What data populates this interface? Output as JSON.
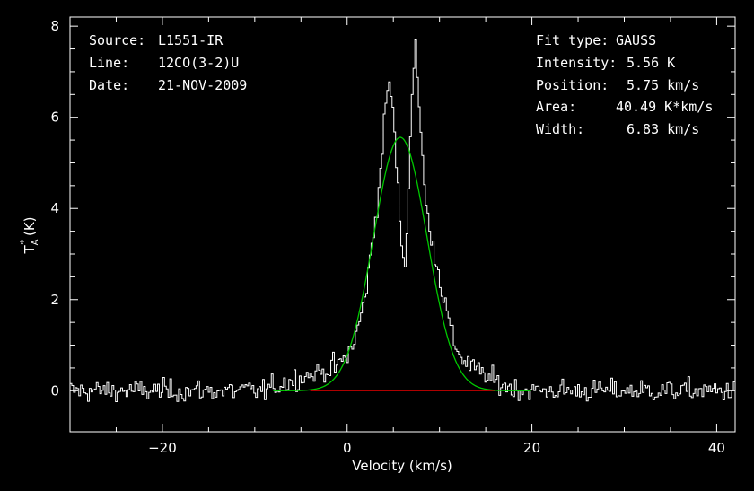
{
  "colors": {
    "background": "#000000",
    "axes": "#ffffff",
    "spectrum": "#ffffff",
    "fit": "#00c800",
    "baseline": "#c80000"
  },
  "info_left": [
    {
      "key": "Source:",
      "value": "L1551-IR"
    },
    {
      "key": "Line:",
      "value": "12CO(3-2)U"
    },
    {
      "key": "Date:",
      "value": "21-NOV-2009"
    }
  ],
  "info_right": [
    {
      "key": "Fit type:",
      "value": "GAUSS"
    },
    {
      "key": "Intensity:",
      "value": "5.56 K"
    },
    {
      "key": "Position:",
      "value": "5.75 km/s"
    },
    {
      "key": "Area:",
      "value": "40.49 K*km/s"
    },
    {
      "key": "Width:",
      "value": "6.83 km/s"
    }
  ],
  "chart_data": {
    "type": "line",
    "xlabel": "Velocity (km/s)",
    "ylabel": "T",
    "ylabel_sub": "A",
    "ylabel_sup": "*",
    "ylabel_unit": "(K)",
    "xlim": [
      -30,
      42
    ],
    "ylim": [
      -0.9,
      8.2
    ],
    "xticks": [
      -20,
      0,
      20,
      40
    ],
    "xtick_labels": [
      "−20",
      "0",
      "20",
      "40"
    ],
    "yticks": [
      0,
      2,
      4,
      6,
      8
    ],
    "ytick_labels": [
      "0",
      "2",
      "4",
      "6",
      "8"
    ],
    "grid": false,
    "series": [
      {
        "kind": "spectrum",
        "noise_rms": 0.12,
        "x_range": [
          -30,
          42
        ],
        "channels": 380,
        "profile_points": [
          [
            -30,
            0
          ],
          [
            -9,
            0
          ],
          [
            -7,
            0.15
          ],
          [
            -5,
            0.3
          ],
          [
            -3,
            0.4
          ],
          [
            -1,
            0.55
          ],
          [
            0,
            0.75
          ],
          [
            1,
            1.2
          ],
          [
            2,
            2.1
          ],
          [
            3,
            3.7
          ],
          [
            3.5,
            4.5
          ],
          [
            4,
            5.8
          ],
          [
            4.5,
            6.9
          ],
          [
            5,
            6.1
          ],
          [
            5.5,
            4.4
          ],
          [
            6,
            3.0
          ],
          [
            6.3,
            2.8
          ],
          [
            6.7,
            4.6
          ],
          [
            7,
            6.4
          ],
          [
            7.4,
            7.8
          ],
          [
            7.8,
            6.2
          ],
          [
            8.5,
            4.1
          ],
          [
            9.5,
            3.0
          ],
          [
            10.5,
            2.0
          ],
          [
            11.5,
            1.1
          ],
          [
            12.5,
            0.7
          ],
          [
            14,
            0.45
          ],
          [
            16,
            0.2
          ],
          [
            18,
            0.05
          ],
          [
            20,
            0
          ],
          [
            42,
            0
          ]
        ]
      },
      {
        "kind": "gaussian_fit",
        "amplitude": 5.56,
        "center": 5.75,
        "fwhm": 6.83
      },
      {
        "kind": "baseline",
        "x": [
          -4,
          16
        ],
        "y": [
          0,
          0
        ]
      }
    ]
  }
}
